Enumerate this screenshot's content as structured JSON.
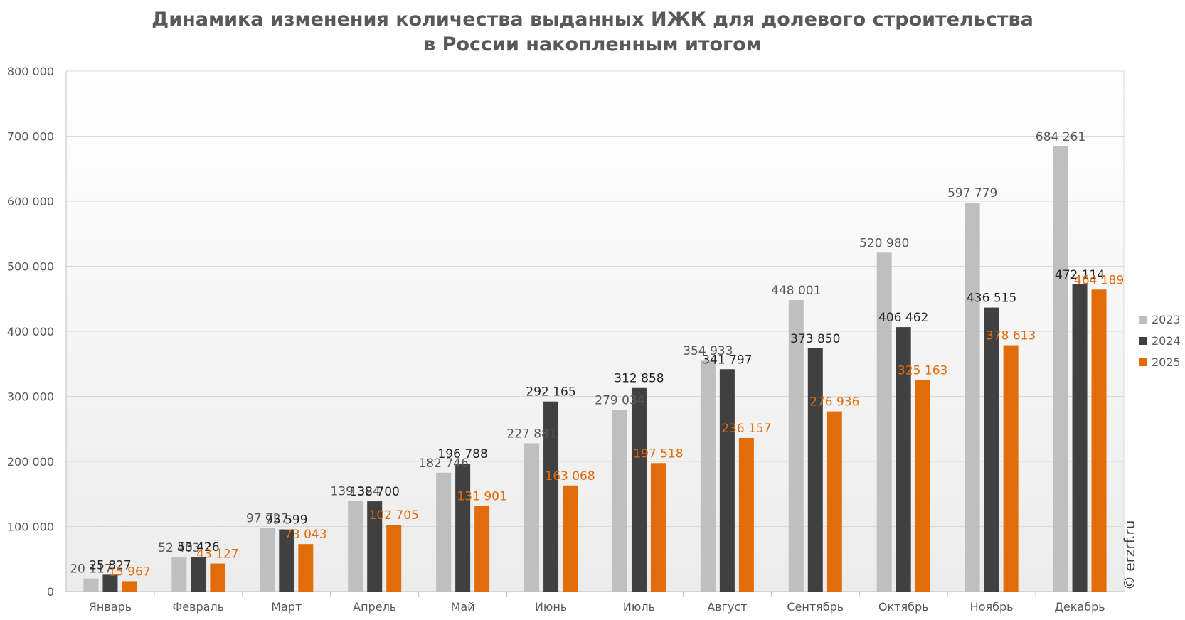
{
  "chart_data": {
    "type": "bar",
    "title": "Динамика изменения количества выданных ИЖК для долевого строительства",
    "title_line2": "в России накопленным итогом",
    "categories": [
      "Январь",
      "Февраль",
      "Март",
      "Апрель",
      "Май",
      "Июнь",
      "Июль",
      "Август",
      "Сентябрь",
      "Октябрь",
      "Ноябрь",
      "Декабрь"
    ],
    "series": [
      {
        "name": "2023",
        "color": "#bfbfbf",
        "label_color": "#595959",
        "values": [
          20117,
          52403,
          97727,
          139324,
          182746,
          227881,
          279034,
          354933,
          448001,
          520980,
          597779,
          684261
        ],
        "labels": [
          "20 117",
          "52 403",
          "97 727",
          "139 324",
          "182 746",
          "227 881",
          "279 034",
          "354 933",
          "448 001",
          "520 980",
          "597 779",
          "684 261"
        ]
      },
      {
        "name": "2024",
        "color": "#404040",
        "label_color": "#262626",
        "values": [
          25827,
          53426,
          95599,
          138700,
          196788,
          292165,
          312858,
          341797,
          373850,
          406462,
          436515,
          472114
        ],
        "labels": [
          "25 827",
          "53 426",
          "95 599",
          "138 700",
          "196 788",
          "292 165",
          "312 858",
          "341 797",
          "373 850",
          "406 462",
          "436 515",
          "472 114"
        ]
      },
      {
        "name": "2025",
        "color": "#e36c0a",
        "label_color": "#e36c0a",
        "values": [
          15967,
          43127,
          73043,
          102705,
          131901,
          163068,
          197518,
          236157,
          276936,
          325163,
          378613,
          464189
        ],
        "labels": [
          "15 967",
          "43 127",
          "73 043",
          "102 705",
          "131 901",
          "163 068",
          "197 518",
          "236 157",
          "276 936",
          "325 163",
          "378 613",
          "464 189"
        ]
      }
    ],
    "ylim": [
      0,
      800000
    ],
    "yticks": [
      0,
      100000,
      200000,
      300000,
      400000,
      500000,
      600000,
      700000,
      800000
    ],
    "ytick_labels": [
      "0",
      "100 000",
      "200 000",
      "300 000",
      "400 000",
      "500 000",
      "600 000",
      "700 000",
      "800 000"
    ],
    "grid": true,
    "legend": "right",
    "watermark": "© erzrf.ru"
  }
}
